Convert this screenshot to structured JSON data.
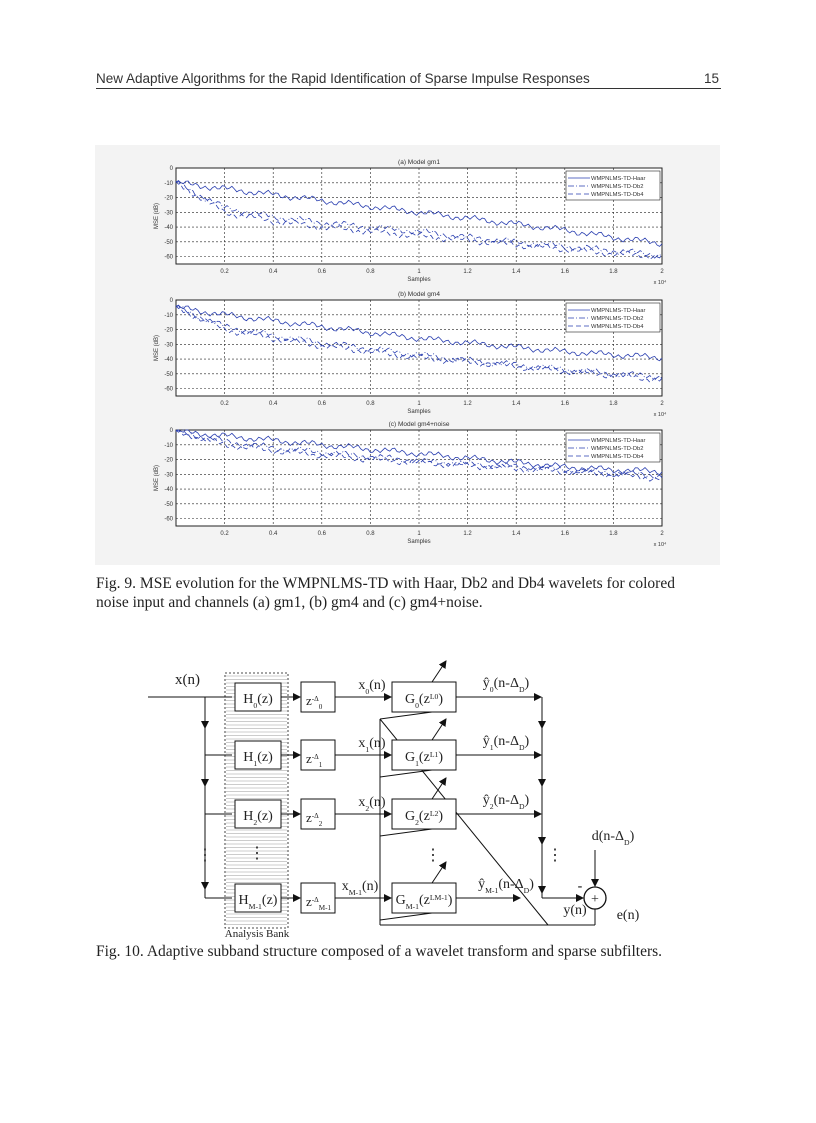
{
  "header": {
    "title": "New Adaptive Algorithms for the Rapid Identification of Sparse Impulse Responses",
    "page_number": "15"
  },
  "chart_data": [
    {
      "type": "line",
      "title": "(a) Model gm1",
      "xlabel": "Samples",
      "ylabel": "MSE (dB)",
      "x_multiplier": "x 10⁴",
      "xlim": [
        0,
        2
      ],
      "ylim": [
        -65,
        0
      ],
      "grid": true,
      "legend_position": "top-right",
      "xticks": [
        "0.2",
        "0.4",
        "0.6",
        "0.8",
        "1",
        "1.2",
        "1.4",
        "1.6",
        "1.8",
        "2"
      ],
      "yticks": [
        "0",
        "-10",
        "-20",
        "-30",
        "-40",
        "-50",
        "-60"
      ],
      "x": [
        0,
        0.2,
        0.4,
        0.6,
        0.8,
        1,
        1.2,
        1.4,
        1.6,
        1.8,
        2
      ],
      "series": [
        {
          "name": "WMPNLMS-TD-Haar",
          "values": [
            -10,
            -14,
            -18,
            -22,
            -26,
            -30,
            -34,
            -38,
            -42,
            -47,
            -51
          ]
        },
        {
          "name": "WMPNLMS-TD-Db2",
          "values": [
            -10,
            -27,
            -33,
            -37,
            -40,
            -43,
            -47,
            -50,
            -53,
            -56,
            -59
          ]
        },
        {
          "name": "WMPNLMS-TD-Db4",
          "values": [
            -10,
            -30,
            -36,
            -40,
            -43,
            -46,
            -49,
            -52,
            -55,
            -58,
            -60
          ]
        }
      ]
    },
    {
      "type": "line",
      "title": "(b) Model gm4",
      "xlabel": "Samples",
      "ylabel": "MSE (dB)",
      "x_multiplier": "x 10⁴",
      "xlim": [
        0,
        2
      ],
      "ylim": [
        -65,
        0
      ],
      "grid": true,
      "legend_position": "top-right",
      "xticks": [
        "0.2",
        "0.4",
        "0.6",
        "0.8",
        "1",
        "1.2",
        "1.4",
        "1.6",
        "1.8",
        "2"
      ],
      "yticks": [
        "0",
        "-10",
        "-20",
        "-30",
        "-40",
        "-50",
        "-60"
      ],
      "x": [
        0,
        0.2,
        0.4,
        0.6,
        0.8,
        1,
        1.2,
        1.4,
        1.6,
        1.8,
        2
      ],
      "series": [
        {
          "name": "WMPNLMS-TD-Haar",
          "values": [
            -5,
            -10,
            -14,
            -18,
            -22,
            -26,
            -29,
            -32,
            -35,
            -37,
            -39
          ]
        },
        {
          "name": "WMPNLMS-TD-Db2",
          "values": [
            -5,
            -18,
            -24,
            -29,
            -33,
            -37,
            -41,
            -44,
            -47,
            -50,
            -52
          ]
        },
        {
          "name": "WMPNLMS-TD-Db4",
          "values": [
            -5,
            -20,
            -26,
            -31,
            -35,
            -39,
            -42,
            -45,
            -48,
            -51,
            -54
          ]
        }
      ]
    },
    {
      "type": "line",
      "title": "(c) Model gm4+noise",
      "xlabel": "Samples",
      "ylabel": "MSE (dB)",
      "x_multiplier": "x 10⁴",
      "xlim": [
        0,
        2
      ],
      "ylim": [
        -65,
        0
      ],
      "grid": true,
      "legend_position": "top-right",
      "xticks": [
        "0.2",
        "0.4",
        "0.6",
        "0.8",
        "1",
        "1.2",
        "1.4",
        "1.6",
        "1.8",
        "2"
      ],
      "yticks": [
        "0",
        "-10",
        "-20",
        "-30",
        "-40",
        "-50",
        "-60"
      ],
      "x": [
        0,
        0.2,
        0.4,
        0.6,
        0.8,
        1,
        1.2,
        1.4,
        1.6,
        1.8,
        2
      ],
      "series": [
        {
          "name": "WMPNLMS-TD-Haar",
          "values": [
            -1,
            -4,
            -7,
            -10,
            -13,
            -16,
            -19,
            -22,
            -25,
            -27,
            -28
          ]
        },
        {
          "name": "WMPNLMS-TD-Db2",
          "values": [
            -1,
            -8,
            -12,
            -15,
            -18,
            -21,
            -23,
            -25,
            -27,
            -29,
            -31
          ]
        },
        {
          "name": "WMPNLMS-TD-Db4",
          "values": [
            -1,
            -10,
            -14,
            -17,
            -20,
            -22,
            -24,
            -26,
            -28,
            -30,
            -33
          ]
        }
      ]
    }
  ],
  "series_color": "#2a3fb0",
  "fig9_caption": {
    "line1": "Fig. 9.  MSE evolution for the WMPNLMS-TD with Haar, Db2 and Db4 wavelets for colored",
    "line2": "noise input and channels (a) gm1, (b) gm4 and (c) gm4+noise."
  },
  "diagram": {
    "input": "x(n)",
    "analysis_bank": "Analysis Bank",
    "filters": [
      {
        "main": "H",
        "sub": "0",
        "tail": "(z)"
      },
      {
        "main": "H",
        "sub": "1",
        "tail": "(z)"
      },
      {
        "main": "H",
        "sub": "2",
        "tail": "(z)"
      },
      {
        "main": "H",
        "sub": "M-1",
        "tail": "(z)"
      }
    ],
    "delays": [
      {
        "main": "z",
        "sup": "-Δ",
        "sub": "0"
      },
      {
        "main": "z",
        "sup": "-Δ",
        "sub": "1"
      },
      {
        "main": "z",
        "sup": "-Δ",
        "sub": "2"
      },
      {
        "main": "z",
        "sup": "-Δ",
        "sub": "M-1"
      }
    ],
    "subband_signals": [
      {
        "main": "x",
        "sub": "0",
        "tail": "(n)"
      },
      {
        "main": "x",
        "sub": "1",
        "tail": "(n)"
      },
      {
        "main": "x",
        "sub": "2",
        "tail": "(n)"
      },
      {
        "main": "x",
        "sub": "M-1",
        "tail": "(n)"
      }
    ],
    "subfilters": [
      {
        "main": "G",
        "sub": "0",
        "tail": "(z",
        "sup": "L0",
        "end": ")"
      },
      {
        "main": "G",
        "sub": "1",
        "tail": "(z",
        "sup": "L1",
        "end": ")"
      },
      {
        "main": "G",
        "sub": "2",
        "tail": "(z",
        "sup": "L2",
        "end": ")"
      },
      {
        "main": "G",
        "sub": "M-1",
        "tail": "(z",
        "sup": "LM-1",
        "end": ")"
      }
    ],
    "outputs": [
      {
        "main": "ŷ",
        "sub": "0",
        "tail": "(n-Δ",
        "sub2": "D",
        "end": ")"
      },
      {
        "main": "ŷ",
        "sub": "1",
        "tail": "(n-Δ",
        "sub2": "D",
        "end": ")"
      },
      {
        "main": "ŷ",
        "sub": "2",
        "tail": "(n-Δ",
        "sub2": "D",
        "end": ")"
      },
      {
        "main": "ŷ",
        "sub": "M-1",
        "tail": "(n-Δ",
        "sub2": "D",
        "end": ")"
      }
    ],
    "desired": {
      "main": "d(n-Δ",
      "sub": "D",
      "end": ")"
    },
    "sum_output": "y(n)",
    "error": "e(n)",
    "minus": "-",
    "plus": "+",
    "ellipsis": "⋮"
  },
  "fig10_caption": "Fig. 10. Adaptive subband structure composed of a wavelet transform and sparse subfilters."
}
